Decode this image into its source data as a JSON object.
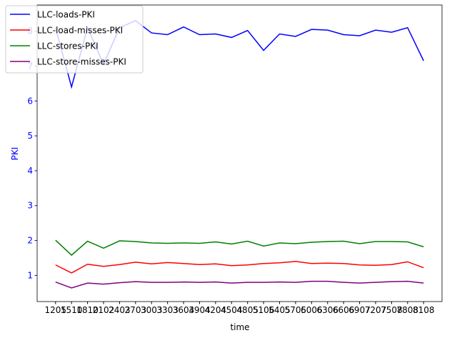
{
  "chart_data": {
    "type": "line",
    "x_label": "time",
    "y_label": "PKI",
    "y_label_color": "#0000ff",
    "categories": [
      "1205",
      "1510",
      "1810",
      "2102",
      "2403",
      "2703",
      "3003",
      "3303",
      "3604",
      "3904",
      "4204",
      "4504",
      "4805",
      "5106",
      "5405",
      "5705",
      "6006",
      "6306",
      "6606",
      "6907",
      "7207",
      "7508",
      "7808",
      "8108"
    ],
    "series": [
      {
        "name": "LLC-loads-PKI",
        "color": "#0000ff",
        "values": [
          8.1,
          6.4,
          8.1,
          7.05,
          8.1,
          8.3,
          7.95,
          7.9,
          8.12,
          7.9,
          7.92,
          7.82,
          8.02,
          7.45,
          7.92,
          7.85,
          8.05,
          8.03,
          7.9,
          7.87,
          8.03,
          7.97,
          8.1,
          7.15
        ]
      },
      {
        "name": "LLC-load-misses-PKI",
        "color": "#ff0000",
        "values": [
          1.3,
          1.07,
          1.32,
          1.26,
          1.31,
          1.38,
          1.33,
          1.37,
          1.34,
          1.31,
          1.33,
          1.28,
          1.3,
          1.34,
          1.36,
          1.4,
          1.34,
          1.35,
          1.34,
          1.3,
          1.29,
          1.31,
          1.39,
          1.22
        ]
      },
      {
        "name": "LLC-stores-PKI",
        "color": "#008000",
        "values": [
          2.01,
          1.58,
          1.98,
          1.78,
          1.99,
          1.97,
          1.93,
          1.92,
          1.93,
          1.92,
          1.96,
          1.9,
          1.98,
          1.84,
          1.93,
          1.91,
          1.95,
          1.97,
          1.98,
          1.91,
          1.97,
          1.97,
          1.96,
          1.82
        ]
      },
      {
        "name": "LLC-store-misses-PKI",
        "color": "#800080",
        "values": [
          0.81,
          0.64,
          0.78,
          0.75,
          0.79,
          0.82,
          0.8,
          0.8,
          0.81,
          0.8,
          0.81,
          0.78,
          0.8,
          0.8,
          0.81,
          0.8,
          0.83,
          0.83,
          0.8,
          0.78,
          0.8,
          0.82,
          0.83,
          0.78
        ]
      }
    ],
    "ylim": [
      0.25,
      8.75
    ],
    "yticks": [
      1,
      2,
      3,
      4,
      5,
      6,
      7,
      8
    ],
    "ytick_color": "#0000ff",
    "legend": "upper left"
  }
}
